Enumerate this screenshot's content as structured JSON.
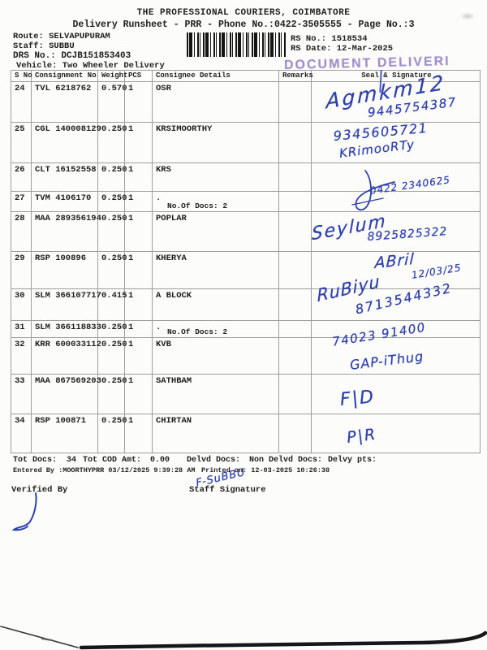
{
  "header": {
    "title": "THE PROFESSIONAL COURIERS, COIMBATORE",
    "subtitle": "Delivery Runsheet - PRR - Phone No.:0422-3505555 - Page No.:3",
    "route_label": "Route:",
    "route_value": "SELVAPUPURAM",
    "staff_label": "Staff:",
    "staff_value": "SUBBU",
    "drs_label": "DRS No.:",
    "drs_value": "DCJB151853403",
    "vehicle_label": "Vehicle:",
    "vehicle_value": "Two Wheeler Delivery",
    "rs_no_label": "RS No.:",
    "rs_no_value": "1518534",
    "rs_date_label": "RS Date:",
    "rs_date_value": "12-Mar-2025",
    "stamp_text": "DOCUMENT DELIVERI"
  },
  "table": {
    "headers": [
      "S No",
      "Consignment No",
      "Weight",
      "PCS",
      "Consignee Details",
      "Remarks",
      "Seal & Signature"
    ],
    "rows": [
      {
        "sno": "24",
        "consignment": "TVL 6218762",
        "weight": "0.570",
        "pcs": "1",
        "consignee": "OSR",
        "docs_note": ""
      },
      {
        "sno": "25",
        "consignment": "CGL 140008129",
        "weight": "0.250",
        "pcs": "1",
        "consignee": "KRSIMOORTHY",
        "docs_note": ""
      },
      {
        "sno": "26",
        "consignment": "CLT 16152558",
        "weight": "0.250",
        "pcs": "1",
        "consignee": "KRS",
        "docs_note": ""
      },
      {
        "sno": "27",
        "consignment": "TVM 4106170",
        "weight": "0.250",
        "pcs": "1",
        "consignee": ".",
        "docs_note": "No.Of Docs: 2"
      },
      {
        "sno": "28",
        "consignment": "MAA 289356194",
        "weight": "0.250",
        "pcs": "1",
        "consignee": "POPLAR",
        "docs_note": ""
      },
      {
        "sno": "29",
        "consignment": "RSP 100896",
        "weight": "0.250",
        "pcs": "1",
        "consignee": "KHERYA",
        "docs_note": ""
      },
      {
        "sno": "30",
        "consignment": "SLM 366107717",
        "weight": "0.415",
        "pcs": "1",
        "consignee": "A BLOCK",
        "docs_note": ""
      },
      {
        "sno": "31",
        "consignment": "SLM 366118833",
        "weight": "0.250",
        "pcs": "1",
        "consignee": ".",
        "docs_note": "No.Of Docs: 2"
      },
      {
        "sno": "32",
        "consignment": "KRR 600033112",
        "weight": "0.250",
        "pcs": "1",
        "consignee": "KVB",
        "docs_note": ""
      },
      {
        "sno": "33",
        "consignment": "MAA 867569203",
        "weight": "0.250",
        "pcs": "1",
        "consignee": "SATHBAM",
        "docs_note": ""
      },
      {
        "sno": "34",
        "consignment": "RSP 100871",
        "weight": "0.250",
        "pcs": "1",
        "consignee": "CHIRTAN",
        "docs_note": ""
      }
    ]
  },
  "handwriting": {
    "sig_row24": "Agmkm12",
    "phone_row24": "9445754387",
    "phone_row25": "9345605721",
    "name_row25": "KRimooRTy",
    "phone_row27": "0422 2340625",
    "sig_row28": "Seylum",
    "phone_row28": "8925825322",
    "sig_row29": "ABril",
    "date_row29": "12/03/25",
    "sig_row30": "RuBiyu",
    "phone_row30": "8713544332",
    "phone_row32": "74023 91400",
    "name_row32": "GAP-iThug",
    "note_row33": "F|D",
    "note_row34": "P|R",
    "staff_sign": "F-SuBBU"
  },
  "footer": {
    "tot_docs_label": "Tot Docs:",
    "tot_docs_value": "34",
    "cod_label": "Tot COD Amt:",
    "cod_value": "0.00",
    "delvd_label": "Delvd Docs:",
    "non_delvd_label": "Non Delvd Docs:",
    "delvy_label": "Delvy pts:",
    "entered_label": "Entered By :",
    "entered_value": "MOORTHYPRR 03/12/2025 9:39:28 AM",
    "printed_label": "Printed on:",
    "printed_value": "12-03-2025 10:26:38",
    "verified_label": "Verified By",
    "staff_sig_label": "Staff Signature"
  },
  "colors": {
    "ink": "#2e3fae",
    "stamp": "#7458b6"
  }
}
